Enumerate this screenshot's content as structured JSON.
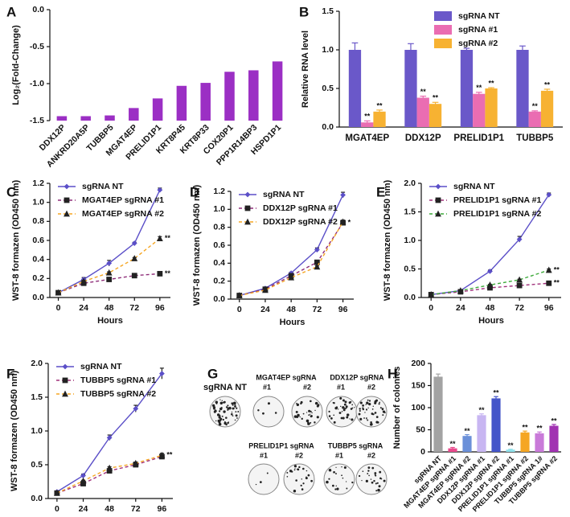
{
  "chart_data": [
    {
      "type": "bar",
      "panel": "A",
      "ylabel": "Log₂(Fold-Change)",
      "categories": [
        "DDX12P",
        "ANKRD20A5P",
        "TUBBP5",
        "MGAT4EP",
        "PRELID1P1",
        "KRT8P45",
        "KRT8P33",
        "COX20P1",
        "PPP1R14BP3",
        "HSPD1P1"
      ],
      "values": [
        -1.44,
        -1.44,
        -1.43,
        -1.33,
        -1.2,
        -1.03,
        -0.99,
        -0.84,
        -0.82,
        -0.7
      ],
      "color": "#9b2fc4",
      "ylim": [
        -1.5,
        0
      ],
      "yticks": [
        -1.5,
        {
          "value": -1,
          "label": "-1.0"
        },
        -0.5,
        {
          "value": 0,
          "label": "0.0"
        }
      ]
    },
    {
      "type": "grouped-bar",
      "panel": "B",
      "ylabel": "Relative RNA level",
      "categories": [
        "MGAT4EP",
        "DDX12P",
        "PRELID1P1",
        "TUBBP5"
      ],
      "series": [
        {
          "name": "sgRNA NT",
          "color": "#6a58c9",
          "values": [
            1,
            1,
            1,
            1
          ],
          "errors": [
            0.09,
            0.08,
            0.02,
            0.05
          ]
        },
        {
          "name": "sgRNA #1",
          "color": "#ea6db2",
          "values": [
            0.06,
            0.38,
            0.43,
            0.2
          ],
          "errors": [
            0.02,
            0.02,
            0.02,
            0.01
          ],
          "annotations": [
            "**",
            "**",
            "**",
            "**"
          ]
        },
        {
          "name": "sgRNA #2",
          "color": "#f7b232",
          "values": [
            0.2,
            0.3,
            0.5,
            0.47
          ],
          "errors": [
            0.02,
            0.02,
            0.01,
            0.02
          ],
          "annotations": [
            "**",
            "**",
            "**",
            "**"
          ]
        }
      ],
      "ylim": [
        0,
        1.5
      ],
      "yticks": [
        {
          "value": 0,
          "label": "0.0"
        },
        0.5,
        {
          "value": 1,
          "label": "1.0"
        },
        1.5
      ],
      "legend": "upper right"
    },
    {
      "type": "line",
      "panel": "C",
      "xlabel": "Hours",
      "ylabel": "WST-8 formazen (OD450 nm)",
      "x": [
        0,
        24,
        48,
        72,
        96
      ],
      "xlim": [
        -8,
        106
      ],
      "xticks": [
        0,
        24,
        48,
        72,
        96
      ],
      "ylim": [
        0,
        1.2
      ],
      "yticks": [
        {
          "value": 0,
          "label": "0.0"
        },
        0.2,
        0.4,
        0.6,
        0.8,
        {
          "value": 1,
          "label": "1.0"
        },
        1.2
      ],
      "series": [
        {
          "name": "sgRNA NT",
          "color": "#5b4fc8",
          "marker": "diamond",
          "dashed": false,
          "values": [
            0.05,
            0.19,
            0.36,
            0.57,
            1.13
          ],
          "errors": [
            0.01,
            0.02,
            0.03,
            0.01,
            0.02
          ]
        },
        {
          "name": "MGAT4EP sgRNA #1",
          "color": "#8e2c78",
          "marker": "square",
          "dashed": true,
          "values": [
            0.05,
            0.15,
            0.19,
            0.23,
            0.25
          ],
          "errors": [
            0.01,
            0.01,
            0.02,
            0.01,
            0.01
          ],
          "annotation": "**"
        },
        {
          "name": "MGAT4EP sgRNA #2",
          "color": "#f5a623",
          "marker": "triangle",
          "dashed": true,
          "values": [
            0.05,
            0.17,
            0.26,
            0.41,
            0.62
          ],
          "errors": [
            0.01,
            0.01,
            0.01,
            0.01,
            0.02
          ],
          "annotation": "**"
        }
      ]
    },
    {
      "type": "line",
      "panel": "D",
      "xlabel": "Hours",
      "ylabel": "WST-8 formazen (OD450 nm)",
      "x": [
        0,
        24,
        48,
        72,
        96
      ],
      "xlim": [
        -8,
        106
      ],
      "xticks": [
        0,
        24,
        48,
        72,
        96
      ],
      "ylim": [
        0,
        1.2
      ],
      "yticks": [
        {
          "value": 0,
          "label": "0.0"
        },
        0.2,
        0.4,
        0.6,
        0.8,
        {
          "value": 1,
          "label": "1.0"
        },
        1.2
      ],
      "series": [
        {
          "name": "sgRNA NT",
          "color": "#5b4fc8",
          "marker": "diamond",
          "dashed": false,
          "values": [
            0.04,
            0.12,
            0.29,
            0.55,
            1.16
          ],
          "errors": [
            0.01,
            0.01,
            0.01,
            0.02,
            0.03
          ]
        },
        {
          "name": "DDX12P sgRNA #1",
          "color": "#8e2c78",
          "marker": "square",
          "dashed": true,
          "values": [
            0.04,
            0.11,
            0.26,
            0.41,
            0.85
          ],
          "errors": [
            0.01,
            0.01,
            0.01,
            0.01,
            0.02
          ],
          "annotation": "*"
        },
        {
          "name": "DDX12P sgRNA #2",
          "color": "#f5a623",
          "marker": "triangle",
          "dashed": true,
          "values": [
            0.04,
            0.1,
            0.24,
            0.36,
            0.86
          ],
          "errors": [
            0.01,
            0.01,
            0.01,
            0.01,
            0.02
          ]
        }
      ]
    },
    {
      "type": "line",
      "panel": "E",
      "xlabel": "Hours",
      "ylabel": "WST-8 formazen (OD450 nm)",
      "x": [
        0,
        24,
        48,
        72,
        96
      ],
      "xlim": [
        -8,
        106
      ],
      "xticks": [
        0,
        24,
        48,
        72,
        96
      ],
      "ylim": [
        0,
        2
      ],
      "yticks": [
        {
          "value": 0,
          "label": "0.0"
        },
        0.5,
        {
          "value": 1,
          "label": "1.0"
        },
        1.5,
        {
          "value": 2,
          "label": "2.0"
        }
      ],
      "series": [
        {
          "name": "sgRNA NT",
          "color": "#5b4fc8",
          "marker": "diamond",
          "dashed": false,
          "values": [
            0.05,
            0.12,
            0.46,
            1.02,
            1.8
          ],
          "errors": [
            0.01,
            0.01,
            0.02,
            0.05,
            0.03
          ]
        },
        {
          "name": "PRELID1P1 sgRNA #1",
          "color": "#a0307a",
          "marker": "square",
          "dashed": true,
          "values": [
            0.05,
            0.1,
            0.17,
            0.21,
            0.25
          ],
          "errors": [
            0.01,
            0.01,
            0.01,
            0.01,
            0.01
          ],
          "annotation": "**"
        },
        {
          "name": "PRELID1P1 sgRNA #2",
          "color": "#3daa3a",
          "marker": "triangle",
          "dashed": true,
          "values": [
            0.05,
            0.12,
            0.22,
            0.31,
            0.48
          ],
          "errors": [
            0.01,
            0.01,
            0.01,
            0.01,
            0.02
          ],
          "annotation": "**"
        }
      ]
    },
    {
      "type": "line",
      "panel": "F",
      "xlabel": "Hours",
      "ylabel": "WST-8 formazen (OD450 nm)",
      "x": [
        0,
        24,
        48,
        72,
        96
      ],
      "xlim": [
        -8,
        106
      ],
      "xticks": [
        0,
        24,
        48,
        72,
        96
      ],
      "ylim": [
        0,
        2
      ],
      "yticks": [
        {
          "value": 0,
          "label": "0.0"
        },
        0.5,
        {
          "value": 1,
          "label": "1.0"
        },
        1.5,
        {
          "value": 2,
          "label": "2.0"
        }
      ],
      "series": [
        {
          "name": "sgRNA NT",
          "color": "#5b4fc8",
          "marker": "diamond",
          "dashed": false,
          "values": [
            0.1,
            0.34,
            0.9,
            1.33,
            1.85
          ],
          "errors": [
            0.01,
            0.02,
            0.04,
            0.05,
            0.08
          ]
        },
        {
          "name": "TUBBP5 sgRNA #1",
          "color": "#a0307a",
          "marker": "square",
          "dashed": true,
          "values": [
            0.08,
            0.22,
            0.41,
            0.5,
            0.62
          ],
          "errors": [
            0.01,
            0.01,
            0.02,
            0.02,
            0.03
          ]
        },
        {
          "name": "TUBBP5 sgRNA #2",
          "color": "#f5a623",
          "marker": "triangle",
          "dashed": true,
          "values": [
            0.08,
            0.26,
            0.45,
            0.52,
            0.64
          ],
          "errors": [
            0.01,
            0.01,
            0.02,
            0.02,
            0.03
          ],
          "annotation": "**"
        }
      ]
    },
    {
      "type": "bar",
      "panel": "H",
      "ylabel": "Number of colonies",
      "categories": [
        "sgRNA NT",
        "MGAT4EP sgRNA #1",
        "MGAT4EP sgRNA #2",
        "DDX12P sgRNA #1",
        "DDX12P sgRNA #2",
        "PRELID1P1 sgRNA #1",
        "PRELID1P1 sgRNA #2",
        "TUBBP5 sgRNA 1#",
        "TUBBP5 sgRNA #2"
      ],
      "values": [
        170,
        8,
        36,
        83,
        121,
        5,
        44,
        42,
        59
      ],
      "errors": [
        6,
        2,
        3,
        3,
        4,
        1,
        3,
        3,
        3
      ],
      "annotations": [
        null,
        "**",
        "**",
        "**",
        "**",
        "**",
        "**",
        "**",
        "**"
      ],
      "colors": [
        "#a3a3a3",
        "#e9498c",
        "#6b90d9",
        "#c8b6f2",
        "#4455c9",
        "#8ee0ea",
        "#f5a623",
        "#c97ad9",
        "#a132b2"
      ],
      "ylim": [
        0,
        200
      ],
      "yticks": [
        0,
        50,
        100,
        150,
        200
      ]
    }
  ],
  "colony_panel": {
    "panel": "G",
    "groups": [
      {
        "title": "sgRNA NT"
      },
      {
        "title": "MGAT4EP sgRNA",
        "wells": [
          "#1",
          "#2"
        ]
      },
      {
        "title": "DDX12P sgRNA",
        "wells": [
          "#1",
          "#2"
        ]
      },
      {
        "title": "PRELID1P1 sgRNA",
        "wells": [
          "#1",
          "#2"
        ]
      },
      {
        "title": "TUBBP5 sgRNA",
        "wells": [
          "#1",
          "#2"
        ]
      }
    ]
  }
}
